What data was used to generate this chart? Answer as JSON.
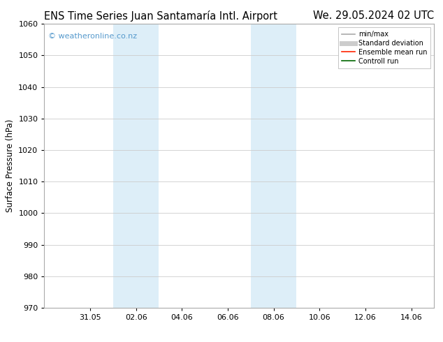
{
  "title_left": "ENS Time Series Juan Santamaría Intl. Airport",
  "title_right": "We. 29.05.2024 02 UTC",
  "ylabel": "Surface Pressure (hPa)",
  "ylim": [
    970,
    1060
  ],
  "yticks": [
    970,
    980,
    990,
    1000,
    1010,
    1020,
    1030,
    1040,
    1050,
    1060
  ],
  "xtick_labels": [
    "31.05",
    "02.06",
    "04.06",
    "06.06",
    "08.06",
    "10.06",
    "12.06",
    "14.06"
  ],
  "xtick_positions": [
    2,
    4,
    6,
    8,
    10,
    12,
    14,
    16
  ],
  "xlim": [
    0,
    17
  ],
  "watermark": "© weatheronline.co.nz",
  "watermark_color": "#5599cc",
  "shaded_bands": [
    {
      "xmin": 3.0,
      "xmax": 5.0
    },
    {
      "xmin": 9.0,
      "xmax": 11.0
    }
  ],
  "shaded_color": "#ddeef8",
  "legend_items": [
    {
      "label": "min/max",
      "color": "#aaaaaa",
      "lw": 1.2
    },
    {
      "label": "Standard deviation",
      "color": "#cccccc",
      "lw": 5
    },
    {
      "label": "Ensemble mean run",
      "color": "#ff2200",
      "lw": 1.2
    },
    {
      "label": "Controll run",
      "color": "#006600",
      "lw": 1.2
    }
  ],
  "bg_color": "#ffffff",
  "grid_color": "#cccccc",
  "title_fontsize": 10.5,
  "axis_fontsize": 8.5,
  "tick_fontsize": 8,
  "watermark_fontsize": 8
}
